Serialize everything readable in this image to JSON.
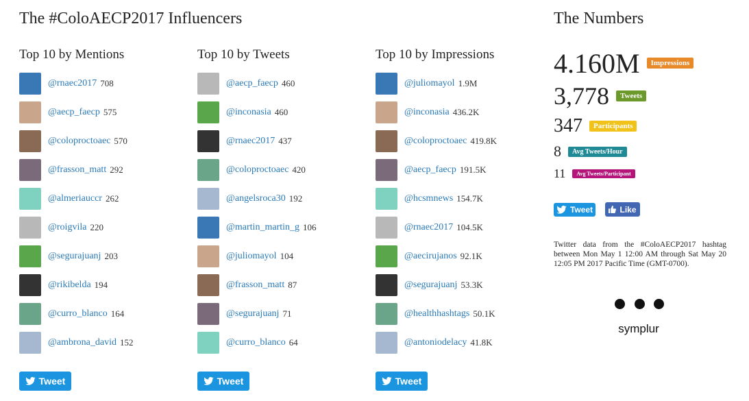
{
  "header": {
    "title": "The #ColoAECP2017 Influencers"
  },
  "lists": [
    {
      "heading": "Top 10 by Mentions",
      "button": "Tweet",
      "items": [
        {
          "handle": "@rnaec2017",
          "count": "708"
        },
        {
          "handle": "@aecp_faecp",
          "count": "575"
        },
        {
          "handle": "@coloproctoaec",
          "count": "570"
        },
        {
          "handle": "@frasson_matt",
          "count": "292"
        },
        {
          "handle": "@almeriauccr",
          "count": "262"
        },
        {
          "handle": "@roigvila",
          "count": "220"
        },
        {
          "handle": "@segurajuanj",
          "count": "203"
        },
        {
          "handle": "@rikibelda",
          "count": "194"
        },
        {
          "handle": "@curro_blanco",
          "count": "164"
        },
        {
          "handle": "@ambrona_david",
          "count": "152"
        }
      ]
    },
    {
      "heading": "Top 10 by Tweets",
      "button": "Tweet",
      "items": [
        {
          "handle": "@aecp_faecp",
          "count": "460"
        },
        {
          "handle": "@inconasia",
          "count": "460"
        },
        {
          "handle": "@rnaec2017",
          "count": "437"
        },
        {
          "handle": "@coloproctoaec",
          "count": "420"
        },
        {
          "handle": "@angelsroca30",
          "count": "192"
        },
        {
          "handle": "@martin_martin_g",
          "count": "106"
        },
        {
          "handle": "@juliomayol",
          "count": "104"
        },
        {
          "handle": "@frasson_matt",
          "count": "87"
        },
        {
          "handle": "@segurajuanj",
          "count": "71"
        },
        {
          "handle": "@curro_blanco",
          "count": "64"
        }
      ]
    },
    {
      "heading": "Top 10 by Impressions",
      "button": "Tweet",
      "items": [
        {
          "handle": "@juliomayol",
          "count": "1.9M"
        },
        {
          "handle": "@inconasia",
          "count": "436.2K"
        },
        {
          "handle": "@coloproctoaec",
          "count": "419.8K"
        },
        {
          "handle": "@aecp_faecp",
          "count": "191.5K"
        },
        {
          "handle": "@hcsmnews",
          "count": "154.7K"
        },
        {
          "handle": "@rnaec2017",
          "count": "104.5K"
        },
        {
          "handle": "@aecirujanos",
          "count": "92.1K"
        },
        {
          "handle": "@segurajuanj",
          "count": "53.3K"
        },
        {
          "handle": "@healthhashtags",
          "count": "50.1K"
        },
        {
          "handle": "@antoniodelacy",
          "count": "41.8K"
        }
      ]
    }
  ],
  "numbers": {
    "heading": "The Numbers",
    "stats": [
      {
        "value": "4.160M",
        "label": "Impressions"
      },
      {
        "value": "3,778",
        "label": "Tweets"
      },
      {
        "value": "347",
        "label": "Participants"
      },
      {
        "value": "8",
        "label": "Avg Tweets/Hour"
      },
      {
        "value": "11",
        "label": "Avg Tweets/Participant"
      }
    ],
    "buttons": [
      "Tweet",
      "Like"
    ],
    "note": "Twitter data from the #ColoAECP2017 hashtag between Mon May 1 12:00 AM through Sat May 20 12:05 PM 2017 Pacific Time (GMT-0700).",
    "logo": "symplur"
  }
}
